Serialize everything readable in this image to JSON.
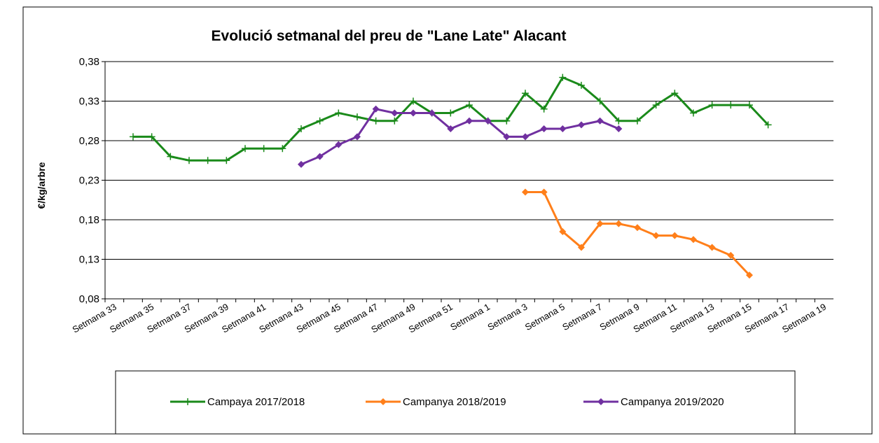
{
  "chart_data": {
    "type": "line",
    "title": "Evolució setmanal del preu de \"Lane Late\" Alacant",
    "y_label": "€/kg/arbre",
    "categories": [
      "Setmana 33",
      null,
      "Setmana 35",
      null,
      "Setmana 37",
      null,
      "Setmana 39",
      null,
      "Setmana 41",
      null,
      "Setmana 43",
      null,
      "Setmana 45",
      null,
      "Setmana 47",
      null,
      "Setmana 49",
      null,
      "Setmana 51",
      null,
      "Setmana 1",
      null,
      "Setmana 3",
      null,
      "Setmana 5",
      null,
      "Setmana 7",
      null,
      "Setmana 9",
      null,
      "Setmana 11",
      null,
      "Setmana 13",
      null,
      "Setmana 15",
      null,
      "Setmana 17",
      null,
      "Setmana 19"
    ],
    "series": [
      {
        "name": "Campaya 2017/2018",
        "color": "#1a8a1a",
        "marker": "plus",
        "values": [
          null,
          0.285,
          0.285,
          0.26,
          0.255,
          0.255,
          0.255,
          0.27,
          0.27,
          0.27,
          0.295,
          0.305,
          0.315,
          0.31,
          0.305,
          0.305,
          0.33,
          0.315,
          0.315,
          0.325,
          0.305,
          0.305,
          0.34,
          0.32,
          0.36,
          0.35,
          0.33,
          0.305,
          0.305,
          0.325,
          0.34,
          0.315,
          0.325,
          0.325,
          0.325,
          0.3,
          null,
          null,
          null
        ]
      },
      {
        "name": "Campanya 2018/2019",
        "color": "#ff7f1a",
        "marker": "diamond",
        "values": [
          null,
          null,
          null,
          null,
          null,
          null,
          null,
          null,
          null,
          null,
          null,
          null,
          null,
          null,
          null,
          null,
          null,
          null,
          null,
          null,
          null,
          null,
          0.215,
          0.215,
          0.165,
          0.145,
          0.175,
          0.175,
          0.17,
          0.16,
          0.16,
          0.155,
          0.145,
          0.135,
          0.11,
          null,
          null,
          null,
          null
        ]
      },
      {
        "name": "Campanya 2019/2020",
        "color": "#7030a0",
        "marker": "diamond",
        "values": [
          null,
          null,
          null,
          null,
          null,
          null,
          null,
          null,
          null,
          null,
          0.25,
          0.26,
          0.275,
          0.285,
          0.32,
          0.315,
          0.315,
          0.315,
          0.295,
          0.305,
          0.305,
          0.285,
          0.285,
          0.295,
          0.295,
          0.3,
          0.305,
          0.295,
          null,
          null,
          null,
          null,
          null,
          null,
          null,
          null,
          null,
          null,
          null
        ]
      }
    ],
    "ylim": [
      0.08,
      0.38
    ],
    "yticks": [
      {
        "value": 0.08,
        "label": "0,08"
      },
      {
        "value": 0.13,
        "label": "0,13"
      },
      {
        "value": 0.18,
        "label": "0,18"
      },
      {
        "value": 0.23,
        "label": "0,23"
      },
      {
        "value": 0.28,
        "label": "0,28"
      },
      {
        "value": 0.33,
        "label": "0,33"
      },
      {
        "value": 0.38,
        "label": "0,38"
      }
    ],
    "grid": true
  }
}
